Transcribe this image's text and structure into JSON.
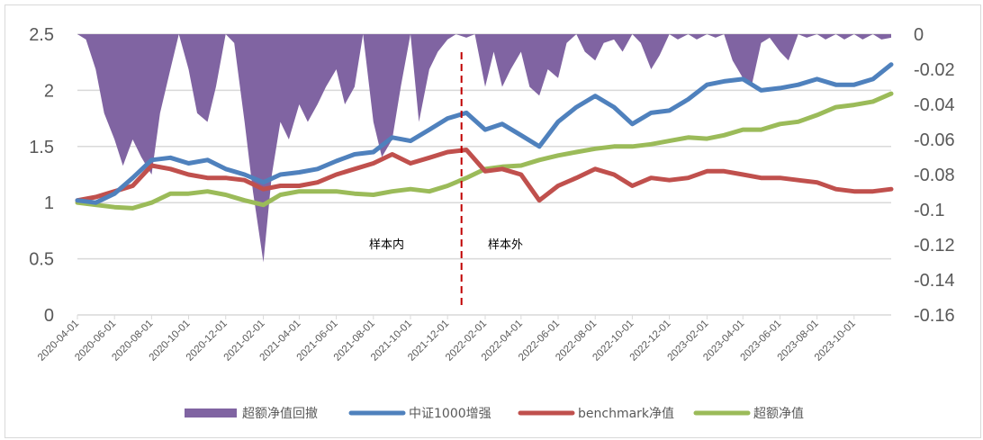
{
  "chart_data": {
    "type": "line",
    "title": "",
    "left_axis": {
      "ylim": [
        0,
        2.5
      ],
      "ticks": [
        "0",
        "0.5",
        "1",
        "1.5",
        "2",
        "2.5"
      ]
    },
    "right_axis": {
      "ylim": [
        -0.16,
        0
      ],
      "ticks": [
        "0",
        "-0.02",
        "-0.04",
        "-0.06",
        "-0.08",
        "-0.1",
        "-0.12",
        "-0.14",
        "-0.16"
      ]
    },
    "x_ticks": [
      "2020-04-01",
      "2020-06-01",
      "2020-08-01",
      "2020-10-01",
      "2020-12-01",
      "2021-02-01",
      "2021-04-01",
      "2021-06-01",
      "2021-08-01",
      "2021-10-01",
      "2021-12-01",
      "2022-02-01",
      "2022-04-01",
      "2022-06-01",
      "2022-08-01",
      "2022-10-01",
      "2022-12-01",
      "2023-02-01",
      "2023-04-01",
      "2023-06-01",
      "2023-08-01",
      "2023-10-01"
    ],
    "xlim": [
      "2020-04-01",
      "2023-12-01"
    ],
    "grid": "horizontal",
    "legend_position": "bottom",
    "colors": {
      "drawdown": "#8064a2",
      "blue": "#4f81bd",
      "red": "#c0504d",
      "green": "#9bbb59",
      "split": "#c00000"
    },
    "annotations": {
      "in_sample": "样本内",
      "out_sample": "样本外",
      "split_date": "2021-12-24"
    },
    "dates": [
      "2020-04-01",
      "2020-05-01",
      "2020-06-01",
      "2020-07-01",
      "2020-08-01",
      "2020-09-01",
      "2020-10-01",
      "2020-11-01",
      "2020-12-01",
      "2021-01-01",
      "2021-02-01",
      "2021-03-01",
      "2021-04-01",
      "2021-05-01",
      "2021-06-01",
      "2021-07-01",
      "2021-08-01",
      "2021-09-01",
      "2021-10-01",
      "2021-11-01",
      "2021-12-01",
      "2022-01-01",
      "2022-02-01",
      "2022-03-01",
      "2022-04-01",
      "2022-05-01",
      "2022-06-01",
      "2022-07-01",
      "2022-08-01",
      "2022-09-01",
      "2022-10-01",
      "2022-11-01",
      "2022-12-01",
      "2023-01-01",
      "2023-02-01",
      "2023-03-01",
      "2023-04-01",
      "2023-05-01",
      "2023-06-01",
      "2023-07-01",
      "2023-08-01",
      "2023-09-01",
      "2023-10-01",
      "2023-11-01",
      "2023-12-01"
    ],
    "series": [
      {
        "name": "中证1000增强",
        "axis": "left",
        "color": "#4f81bd",
        "values": [
          1.02,
          1.0,
          1.08,
          1.22,
          1.38,
          1.4,
          1.35,
          1.38,
          1.3,
          1.25,
          1.18,
          1.25,
          1.27,
          1.3,
          1.37,
          1.43,
          1.45,
          1.58,
          1.55,
          1.65,
          1.75,
          1.8,
          1.65,
          1.7,
          1.6,
          1.5,
          1.72,
          1.85,
          1.95,
          1.85,
          1.7,
          1.8,
          1.82,
          1.92,
          2.05,
          2.08,
          2.1,
          2.0,
          2.02,
          2.05,
          2.1,
          2.05,
          2.05,
          2.1,
          2.23
        ]
      },
      {
        "name": "benchmark净值",
        "axis": "left",
        "color": "#c0504d",
        "values": [
          1.02,
          1.05,
          1.1,
          1.15,
          1.33,
          1.3,
          1.25,
          1.22,
          1.22,
          1.2,
          1.12,
          1.15,
          1.15,
          1.18,
          1.25,
          1.3,
          1.35,
          1.43,
          1.35,
          1.4,
          1.45,
          1.47,
          1.28,
          1.3,
          1.25,
          1.02,
          1.15,
          1.22,
          1.3,
          1.25,
          1.15,
          1.22,
          1.2,
          1.22,
          1.28,
          1.28,
          1.25,
          1.22,
          1.22,
          1.2,
          1.18,
          1.12,
          1.1,
          1.1,
          1.12
        ]
      },
      {
        "name": "超额净值",
        "axis": "left",
        "color": "#9bbb59",
        "values": [
          1.0,
          0.98,
          0.96,
          0.95,
          1.0,
          1.08,
          1.08,
          1.1,
          1.07,
          1.02,
          0.98,
          1.07,
          1.1,
          1.1,
          1.1,
          1.08,
          1.07,
          1.1,
          1.12,
          1.1,
          1.15,
          1.22,
          1.3,
          1.32,
          1.33,
          1.38,
          1.42,
          1.45,
          1.48,
          1.5,
          1.5,
          1.52,
          1.55,
          1.58,
          1.57,
          1.6,
          1.65,
          1.65,
          1.7,
          1.72,
          1.78,
          1.85,
          1.87,
          1.9,
          1.97
        ]
      }
    ],
    "drawdown": {
      "name": "超额净值回撤",
      "axis": "right",
      "color": "#8064a2",
      "points": [
        [
          "2020-04-01",
          0
        ],
        [
          "2020-04-15",
          -0.003
        ],
        [
          "2020-05-01",
          -0.02
        ],
        [
          "2020-05-15",
          -0.045
        ],
        [
          "2020-06-01",
          -0.06
        ],
        [
          "2020-06-15",
          -0.075
        ],
        [
          "2020-07-01",
          -0.06
        ],
        [
          "2020-07-15",
          -0.07
        ],
        [
          "2020-08-01",
          -0.08
        ],
        [
          "2020-08-15",
          -0.045
        ],
        [
          "2020-09-01",
          -0.02
        ],
        [
          "2020-09-15",
          0
        ],
        [
          "2020-10-01",
          -0.02
        ],
        [
          "2020-10-15",
          -0.045
        ],
        [
          "2020-11-01",
          -0.05
        ],
        [
          "2020-11-15",
          -0.03
        ],
        [
          "2020-12-01",
          0
        ],
        [
          "2020-12-15",
          -0.005
        ],
        [
          "2021-01-01",
          -0.05
        ],
        [
          "2021-01-15",
          -0.09
        ],
        [
          "2021-02-01",
          -0.13
        ],
        [
          "2021-02-15",
          -0.08
        ],
        [
          "2021-03-01",
          -0.05
        ],
        [
          "2021-03-15",
          -0.06
        ],
        [
          "2021-04-01",
          -0.04
        ],
        [
          "2021-04-15",
          -0.05
        ],
        [
          "2021-05-01",
          -0.04
        ],
        [
          "2021-05-15",
          -0.03
        ],
        [
          "2021-06-01",
          -0.02
        ],
        [
          "2021-06-15",
          -0.04
        ],
        [
          "2021-07-01",
          -0.03
        ],
        [
          "2021-07-15",
          0
        ],
        [
          "2021-08-01",
          -0.05
        ],
        [
          "2021-08-15",
          -0.07
        ],
        [
          "2021-09-01",
          -0.06
        ],
        [
          "2021-09-15",
          -0.03
        ],
        [
          "2021-10-01",
          0
        ],
        [
          "2021-10-15",
          -0.05
        ],
        [
          "2021-11-01",
          -0.02
        ],
        [
          "2021-11-15",
          -0.01
        ],
        [
          "2021-12-01",
          -0.003
        ],
        [
          "2021-12-15",
          0
        ],
        [
          "2022-01-01",
          -0.002
        ],
        [
          "2022-01-15",
          0
        ],
        [
          "2022-02-01",
          -0.03
        ],
        [
          "2022-02-15",
          -0.01
        ],
        [
          "2022-03-01",
          -0.03
        ],
        [
          "2022-03-15",
          -0.02
        ],
        [
          "2022-04-01",
          -0.01
        ],
        [
          "2022-04-15",
          -0.03
        ],
        [
          "2022-05-01",
          -0.035
        ],
        [
          "2022-05-15",
          -0.02
        ],
        [
          "2022-06-01",
          -0.025
        ],
        [
          "2022-06-15",
          -0.005
        ],
        [
          "2022-07-01",
          0
        ],
        [
          "2022-07-15",
          -0.01
        ],
        [
          "2022-08-01",
          -0.015
        ],
        [
          "2022-08-15",
          -0.005
        ],
        [
          "2022-09-01",
          -0.003
        ],
        [
          "2022-09-15",
          -0.01
        ],
        [
          "2022-10-01",
          0
        ],
        [
          "2022-10-15",
          -0.005
        ],
        [
          "2022-11-01",
          -0.02
        ],
        [
          "2022-11-15",
          -0.012
        ],
        [
          "2022-12-01",
          0
        ],
        [
          "2022-12-15",
          -0.003
        ],
        [
          "2023-01-01",
          0
        ],
        [
          "2023-01-15",
          -0.003
        ],
        [
          "2023-02-01",
          0
        ],
        [
          "2023-02-15",
          -0.002
        ],
        [
          "2023-03-01",
          0
        ],
        [
          "2023-03-15",
          -0.015
        ],
        [
          "2023-04-01",
          -0.025
        ],
        [
          "2023-04-15",
          -0.03
        ],
        [
          "2023-05-01",
          -0.005
        ],
        [
          "2023-05-15",
          -0.002
        ],
        [
          "2023-06-01",
          -0.01
        ],
        [
          "2023-06-15",
          -0.015
        ],
        [
          "2023-07-01",
          0
        ],
        [
          "2023-07-15",
          -0.002
        ],
        [
          "2023-08-01",
          0
        ],
        [
          "2023-08-15",
          -0.003
        ],
        [
          "2023-09-01",
          0
        ],
        [
          "2023-09-15",
          -0.003
        ],
        [
          "2023-10-01",
          0
        ],
        [
          "2023-10-15",
          -0.003
        ],
        [
          "2023-11-01",
          0
        ],
        [
          "2023-11-15",
          -0.003
        ],
        [
          "2023-12-01",
          -0.002
        ]
      ]
    },
    "legend": [
      "超额净值回撤",
      "中证1000增强",
      "benchmark净值",
      "超额净值"
    ]
  }
}
